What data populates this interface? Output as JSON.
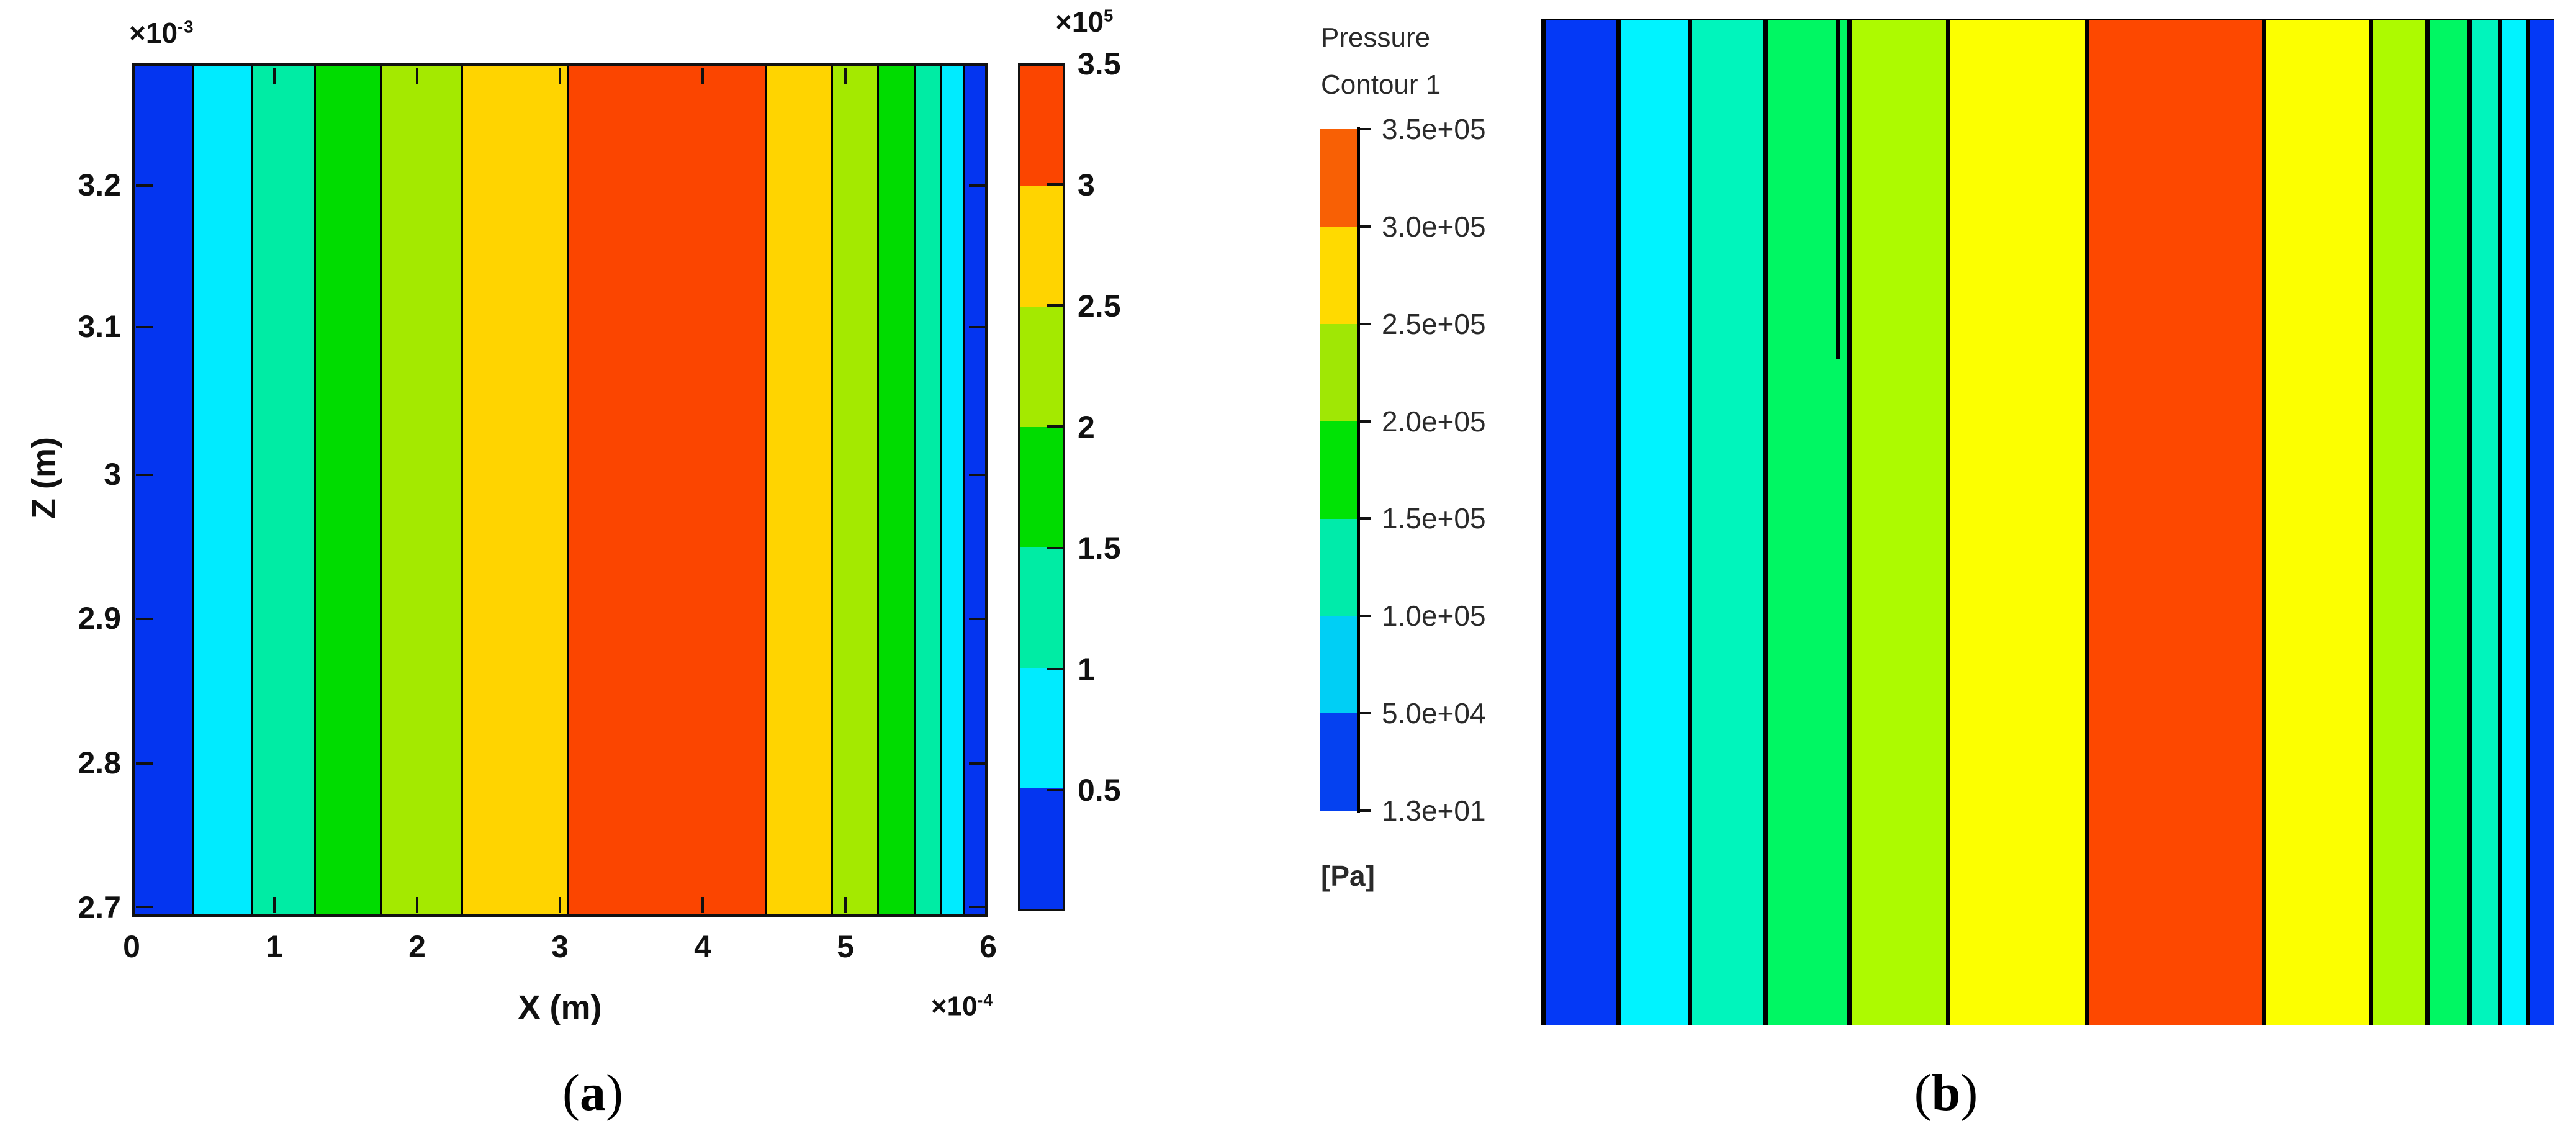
{
  "left_panel": {
    "offset_y_base": "×10",
    "offset_y_exp": "-3",
    "offset_x_base": "×10",
    "offset_x_exp": "-4",
    "offset_cb_base": "×10",
    "offset_cb_exp": "5",
    "xlabel": "X (m)",
    "ylabel": "Z (m)",
    "x_ticks": [
      "0",
      "1",
      "2",
      "3",
      "4",
      "5",
      "6"
    ],
    "y_ticks": [
      "3.2",
      "3.1",
      "3",
      "2.9",
      "2.8",
      "2.7"
    ],
    "colorbar_ticks": [
      "3.5",
      "3",
      "2.5",
      "2",
      "1.5",
      "1",
      "0.5"
    ],
    "bands": [
      {
        "color": "#0435F0",
        "frac": 0.067,
        "level": "0-0.5e5 Pa"
      },
      {
        "color": "#00EBFF",
        "frac": 0.07,
        "level": "0.5-1e5 Pa"
      },
      {
        "color": "#00ECA4",
        "frac": 0.074,
        "level": "1-1.5e5 Pa"
      },
      {
        "color": "#00DC00",
        "frac": 0.077,
        "level": "1.5-2e5 Pa"
      },
      {
        "color": "#A4E900",
        "frac": 0.096,
        "level": "2-2.5e5 Pa"
      },
      {
        "color": "#FFD400",
        "frac": 0.125,
        "level": "2.5-3e5 Pa"
      },
      {
        "color": "#FB4500",
        "frac": 0.232,
        "level": "3-3.5e5 Pa"
      },
      {
        "color": "#FFD400",
        "frac": 0.078,
        "level": "2.5-3e5 Pa"
      },
      {
        "color": "#A4E900",
        "frac": 0.054,
        "level": "2-2.5e5 Pa"
      },
      {
        "color": "#00DC00",
        "frac": 0.044,
        "level": "1.5-2e5 Pa"
      },
      {
        "color": "#00ECA4",
        "frac": 0.03,
        "level": "1-1.5e5 Pa"
      },
      {
        "color": "#00EBFF",
        "frac": 0.027,
        "level": "0.5-1e5 Pa"
      },
      {
        "color": "#0435F0",
        "frac": 0.026,
        "level": "0-0.5e5 Pa"
      }
    ],
    "colorbar_bands": [
      {
        "color": "#FB4500",
        "frac": 0.1429,
        "level": "3-3.5e5 Pa"
      },
      {
        "color": "#FFD400",
        "frac": 0.1429,
        "level": "2.5-3e5 Pa"
      },
      {
        "color": "#A4E900",
        "frac": 0.1429,
        "level": "2-2.5e5 Pa"
      },
      {
        "color": "#00DC00",
        "frac": 0.1429,
        "level": "1.5-2e5 Pa"
      },
      {
        "color": "#00ECA4",
        "frac": 0.1429,
        "level": "1-1.5e5 Pa"
      },
      {
        "color": "#00EBFF",
        "frac": 0.1429,
        "level": "0.5-1e5 Pa"
      },
      {
        "color": "#0435F0",
        "frac": 0.1429,
        "level": "0-0.5e5 Pa"
      }
    ]
  },
  "right_panel": {
    "legend_title_line1": "Pressure",
    "legend_title_line2": "Contour 1",
    "legend_unit": "[Pa]",
    "legend_labels": [
      "3.5e+05",
      "3.0e+05",
      "2.5e+05",
      "2.0e+05",
      "1.5e+05",
      "1.0e+05",
      "5.0e+04",
      "1.3e+01"
    ],
    "legend_bands": [
      {
        "color": "#F86005",
        "frac": 0.1429,
        "level": "3.0e5-3.5e5 Pa"
      },
      {
        "color": "#FFDA00",
        "frac": 0.1429,
        "level": "2.5e5-3.0e5 Pa"
      },
      {
        "color": "#A0E705",
        "frac": 0.1429,
        "level": "2.0e5-2.5e5 Pa"
      },
      {
        "color": "#00E305",
        "frac": 0.1429,
        "level": "1.5e5-2.0e5 Pa"
      },
      {
        "color": "#00EBAA",
        "frac": 0.1429,
        "level": "1.0e5-1.5e5 Pa"
      },
      {
        "color": "#00CFF5",
        "frac": 0.1429,
        "level": "5.0e4-1.0e5 Pa"
      },
      {
        "color": "#0541F0",
        "frac": 0.1429,
        "level": "1.3e1-5.0e4 Pa"
      }
    ],
    "bands": [
      {
        "color": "#0439F6",
        "frac": 0.07,
        "level": "1.3e1-5.0e4 Pa"
      },
      {
        "color": "#00F3FF",
        "frac": 0.071,
        "level": "5.0e4-1.0e5 Pa"
      },
      {
        "color": "#00F5BC",
        "frac": 0.075,
        "level": "1.0e5-1.5e5 Pa"
      },
      {
        "color": "#00F763",
        "frac": 0.083,
        "level": "1.5e5-2.0e5 Pa"
      },
      {
        "color": "#ADFA00",
        "frac": 0.098,
        "level": "2.0e5-2.5e5 Pa"
      },
      {
        "color": "#FCFF00",
        "frac": 0.138,
        "level": "2.5e5-3.0e5 Pa"
      },
      {
        "color": "#FD4800",
        "frac": 0.175,
        "level": "3.0e5-3.5e5 Pa"
      },
      {
        "color": "#FCFF00",
        "frac": 0.106,
        "level": "2.5e5-3.0e5 Pa"
      },
      {
        "color": "#ADFA00",
        "frac": 0.056,
        "level": "2.0e5-2.5e5 Pa"
      },
      {
        "color": "#00F763",
        "frac": 0.042,
        "level": "1.5e5-2.0e5 Pa"
      },
      {
        "color": "#00F5BC",
        "frac": 0.03,
        "level": "1.0e5-1.5e5 Pa"
      },
      {
        "color": "#00F3FF",
        "frac": 0.028,
        "level": "5.0e4-1.0e5 Pa"
      },
      {
        "color": "#0439F6",
        "frac": 0.028,
        "level": "1.3e1-5.0e4 Pa"
      }
    ]
  },
  "captions": {
    "a_open": "(",
    "a_letter": "a",
    "a_close": ")",
    "b_open": "(",
    "b_letter": "b",
    "b_close": ")"
  },
  "chart_data": [
    {
      "type": "heatmap",
      "subfigure": "a",
      "title": "Pressure filled contour (MATLAB)",
      "xlabel": "X (m)",
      "ylabel": "Z (m)",
      "x_axis_multiplier": "1e-4 m",
      "y_axis_multiplier": "1e-3 m",
      "xlim": [
        0,
        6
      ],
      "ylim": [
        2.69,
        3.29
      ],
      "x_ticks": [
        0,
        1,
        2,
        3,
        4,
        5,
        6
      ],
      "y_ticks": [
        2.7,
        2.8,
        2.9,
        3,
        3.1,
        3.2
      ],
      "grid": false,
      "colorbar_multiplier": "1e5 Pa",
      "colorbar_ticks": [
        0.5,
        1,
        1.5,
        2,
        2.5,
        3,
        3.5
      ],
      "colorbar_range": [
        0,
        3.5
      ],
      "band_x_breaks_1e-4_m": [
        0,
        0.4,
        0.83,
        1.27,
        1.73,
        2.31,
        3.06,
        4.45,
        4.92,
        5.24,
        5.51,
        5.69,
        5.85,
        6.0
      ],
      "band_levels_1e5_pa": [
        "0-0.5",
        "0.5-1",
        "1-1.5",
        "1.5-2",
        "2-2.5",
        "2.5-3",
        "3-3.5",
        "2.5-3",
        "2-2.5",
        "1.5-2",
        "1-1.5",
        "0.5-1",
        "0-0.5"
      ]
    },
    {
      "type": "heatmap",
      "subfigure": "b",
      "title": "Pressure Contour 1 (CFD-Post)",
      "unit": "Pa",
      "legend_position": "left",
      "legend_levels_pa": [
        13,
        50000,
        100000,
        150000,
        200000,
        250000,
        300000,
        350000
      ],
      "band_x_fraction_breaks": [
        0,
        0.07,
        0.141,
        0.216,
        0.299,
        0.397,
        0.535,
        0.71,
        0.816,
        0.872,
        0.914,
        0.944,
        0.972,
        1.0
      ],
      "band_levels_pa": [
        "1.3e1-5e4",
        "5e4-1e5",
        "1e5-1.5e5",
        "1.5e5-2e5",
        "2e5-2.5e5",
        "2.5e5-3e5",
        "3e5-3.5e5",
        "2.5e5-3e5",
        "2e5-2.5e5",
        "1.5e5-2e5",
        "1e5-1.5e5",
        "5e4-1e5",
        "1.3e1-5e4"
      ]
    }
  ]
}
